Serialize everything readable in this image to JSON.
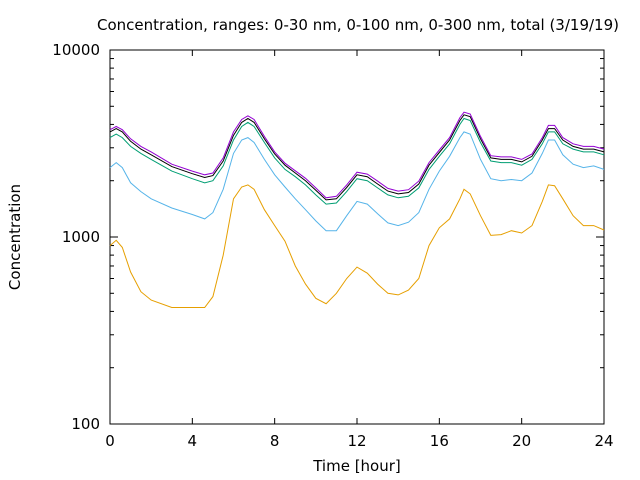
{
  "chart_data": {
    "type": "line",
    "title": "Concentration, ranges: 0-30 nm, 0-100 nm, 0-300 nm, total (3/19/19)",
    "xlabel": "Time [hour]",
    "ylabel": "Concentration",
    "xlim": [
      0,
      24
    ],
    "ylim": [
      100,
      10000
    ],
    "yscale": "log",
    "grid": false,
    "legend": "none",
    "x_ticks": [
      0,
      4,
      8,
      12,
      16,
      20,
      24
    ],
    "x_tick_labels": [
      "0",
      "4",
      "8",
      "12",
      "16",
      "20",
      "24"
    ],
    "y_ticks": [
      100,
      1000,
      10000
    ],
    "y_tick_labels": [
      "100",
      "1000",
      "10000"
    ],
    "series": [
      {
        "color": "#e69f00",
        "x": [
          0,
          0.3,
          0.6,
          1,
          1.5,
          2,
          3,
          4,
          4.6,
          5,
          5.5,
          6,
          6.4,
          6.7,
          7,
          7.5,
          8,
          8.5,
          9,
          9.5,
          10,
          10.5,
          11,
          11.5,
          12,
          12.5,
          13,
          13.5,
          14,
          14.5,
          15,
          15.5,
          16,
          16.5,
          17,
          17.2,
          17.5,
          18,
          18.5,
          19,
          19.5,
          20,
          20.5,
          21,
          21.3,
          21.6,
          22,
          22.5,
          23,
          23.5,
          24
        ],
        "y": [
          900,
          960,
          880,
          650,
          510,
          460,
          420,
          420,
          420,
          480,
          800,
          1600,
          1850,
          1900,
          1800,
          1400,
          1150,
          950,
          700,
          560,
          470,
          440,
          500,
          600,
          690,
          640,
          560,
          500,
          490,
          520,
          600,
          900,
          1120,
          1250,
          1600,
          1800,
          1700,
          1300,
          1020,
          1030,
          1080,
          1050,
          1150,
          1550,
          1900,
          1880,
          1600,
          1300,
          1150,
          1150,
          1090
        ]
      },
      {
        "color": "#56b4e9",
        "x": [
          0,
          0.3,
          0.6,
          1,
          1.5,
          2,
          3,
          4,
          4.6,
          5,
          5.5,
          6,
          6.4,
          6.7,
          7,
          7.5,
          8,
          8.5,
          9,
          9.5,
          10,
          10.5,
          11,
          11.5,
          12,
          12.5,
          13,
          13.5,
          14,
          14.5,
          15,
          15.5,
          16,
          16.5,
          17,
          17.2,
          17.5,
          18,
          18.5,
          19,
          19.5,
          20,
          20.5,
          21,
          21.3,
          21.6,
          22,
          22.5,
          23,
          23.5,
          24
        ],
        "y": [
          2350,
          2500,
          2350,
          1950,
          1750,
          1600,
          1430,
          1320,
          1250,
          1350,
          1800,
          2800,
          3300,
          3400,
          3200,
          2600,
          2150,
          1850,
          1600,
          1400,
          1220,
          1080,
          1080,
          1300,
          1550,
          1500,
          1330,
          1190,
          1150,
          1200,
          1350,
          1800,
          2250,
          2700,
          3400,
          3650,
          3550,
          2600,
          2050,
          2000,
          2030,
          2000,
          2200,
          2800,
          3300,
          3300,
          2750,
          2450,
          2350,
          2400,
          2300
        ]
      },
      {
        "color": "#009e73",
        "x": [
          0,
          0.3,
          0.6,
          1,
          1.5,
          2,
          3,
          4,
          4.6,
          5,
          5.5,
          6,
          6.4,
          6.7,
          7,
          7.5,
          8,
          8.5,
          9,
          9.5,
          10,
          10.5,
          11,
          11.5,
          12,
          12.5,
          13,
          13.5,
          14,
          14.5,
          15,
          15.5,
          16,
          16.5,
          17,
          17.2,
          17.5,
          18,
          18.5,
          19,
          19.5,
          20,
          20.5,
          21,
          21.3,
          21.6,
          22,
          22.5,
          23,
          23.5,
          24
        ],
        "y": [
          3400,
          3550,
          3400,
          3050,
          2800,
          2600,
          2250,
          2050,
          1950,
          2000,
          2400,
          3300,
          3900,
          4100,
          3900,
          3200,
          2650,
          2300,
          2100,
          1900,
          1680,
          1500,
          1520,
          1750,
          2050,
          2000,
          1830,
          1680,
          1620,
          1650,
          1830,
          2300,
          2700,
          3150,
          4000,
          4300,
          4200,
          3200,
          2550,
          2500,
          2500,
          2420,
          2600,
          3150,
          3650,
          3650,
          3150,
          2950,
          2850,
          2850,
          2750
        ]
      },
      {
        "color": "#000000",
        "x": [
          0,
          0.3,
          0.6,
          1,
          1.5,
          2,
          3,
          4,
          4.6,
          5,
          5.5,
          6,
          6.4,
          6.7,
          7,
          7.5,
          8,
          8.5,
          9,
          9.5,
          10,
          10.5,
          11,
          11.5,
          12,
          12.5,
          13,
          13.5,
          14,
          14.5,
          15,
          15.5,
          16,
          16.5,
          17,
          17.2,
          17.5,
          18,
          18.5,
          19,
          19.5,
          20,
          20.5,
          21,
          21.3,
          21.6,
          22,
          22.5,
          23,
          23.5,
          24
        ],
        "y": [
          3650,
          3800,
          3650,
          3250,
          2950,
          2750,
          2380,
          2180,
          2080,
          2130,
          2550,
          3500,
          4100,
          4300,
          4100,
          3350,
          2780,
          2420,
          2200,
          2000,
          1780,
          1580,
          1600,
          1840,
          2150,
          2100,
          1920,
          1760,
          1700,
          1730,
          1920,
          2420,
          2830,
          3300,
          4200,
          4500,
          4400,
          3350,
          2650,
          2600,
          2600,
          2520,
          2700,
          3300,
          3800,
          3800,
          3300,
          3050,
          2950,
          2950,
          2850
        ]
      },
      {
        "color": "#9400d3",
        "x": [
          0,
          0.3,
          0.6,
          1,
          1.5,
          2,
          3,
          4,
          4.6,
          5,
          5.5,
          6,
          6.4,
          6.7,
          7,
          7.5,
          8,
          8.5,
          9,
          9.5,
          10,
          10.5,
          11,
          11.5,
          12,
          12.5,
          13,
          13.5,
          14,
          14.5,
          15,
          15.5,
          16,
          16.5,
          17,
          17.2,
          17.5,
          18,
          18.5,
          19,
          19.5,
          20,
          20.5,
          21,
          21.3,
          21.6,
          22,
          22.5,
          23,
          23.5,
          24
        ],
        "y": [
          3750,
          3900,
          3750,
          3350,
          3050,
          2850,
          2450,
          2250,
          2150,
          2200,
          2650,
          3650,
          4250,
          4450,
          4250,
          3450,
          2850,
          2480,
          2260,
          2060,
          1830,
          1620,
          1650,
          1900,
          2220,
          2170,
          1990,
          1820,
          1760,
          1790,
          1990,
          2500,
          2920,
          3400,
          4350,
          4650,
          4550,
          3450,
          2720,
          2680,
          2680,
          2600,
          2780,
          3400,
          3950,
          3950,
          3400,
          3150,
          3050,
          3050,
          2950
        ]
      }
    ]
  }
}
